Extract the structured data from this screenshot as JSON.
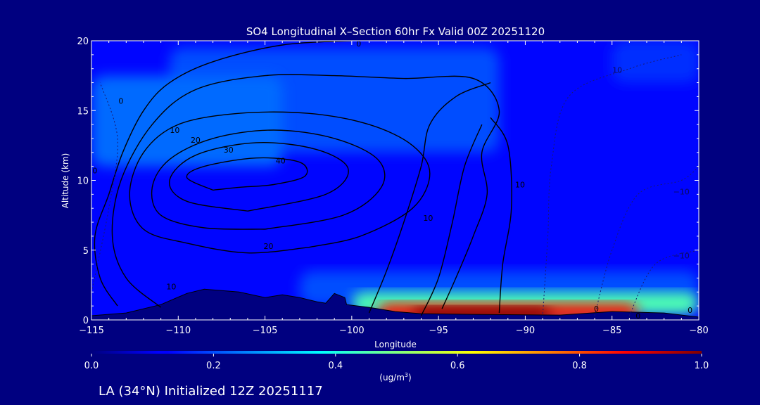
{
  "chart_data": {
    "type": "heatmap",
    "title": "SO4 Longitudinal X–Section 60hr  Fx Valid 00Z 20251120",
    "xlabel": "Longitude",
    "ylabel": "Altitude (km)",
    "xlim": [
      -115,
      -80
    ],
    "ylim": [
      0,
      20
    ],
    "x_ticks": [
      -115,
      -110,
      -105,
      -100,
      -95,
      -90,
      -85,
      -80
    ],
    "x_tick_labels": [
      "−115",
      "−110",
      "−105",
      "−100",
      "−95",
      "−90",
      "−85",
      "−80"
    ],
    "y_ticks": [
      0,
      5,
      10,
      15,
      20
    ],
    "y_tick_labels": [
      "0",
      "5",
      "10",
      "15",
      "20"
    ],
    "colorbar": {
      "label_text": "(ug/m",
      "label_sup": "3",
      "label_end": ")",
      "range": [
        0.0,
        1.0
      ],
      "ticks": [
        0.0,
        0.2,
        0.4,
        0.6,
        0.8,
        1.0
      ],
      "tick_labels": [
        "0.0",
        "0.2",
        "0.4",
        "0.6",
        "0.8",
        "1.0"
      ],
      "colormap": "jet"
    },
    "field_regions": [
      {
        "lon": [
          -115,
          -80
        ],
        "alt": [
          0,
          20
        ],
        "value": 0.13
      },
      {
        "lon": [
          -110.5,
          -91.5
        ],
        "alt": [
          12,
          19.5
        ],
        "value": 0.2
      },
      {
        "lon": [
          -115,
          -104
        ],
        "alt": [
          11,
          17.5
        ],
        "value": 0.23
      },
      {
        "lon": [
          -85,
          -80
        ],
        "alt": [
          17,
          20
        ],
        "value": 0.17
      },
      {
        "lon": [
          -103,
          -80
        ],
        "alt": [
          1,
          3.5
        ],
        "value": 0.2
      },
      {
        "lon": [
          -100,
          -80
        ],
        "alt": [
          0.4,
          2
        ],
        "value": 0.45
      },
      {
        "lon": [
          -98.5,
          -83.5
        ],
        "alt": [
          0,
          1.2
        ],
        "value": 0.85
      },
      {
        "lon": [
          -96.5,
          -88.5
        ],
        "alt": [
          0,
          0.9
        ],
        "value": 1.0
      }
    ],
    "solid_contours": [
      {
        "level": 0,
        "label": "0",
        "points": [
          [
            -113.5,
            1
          ],
          [
            -114.5,
            3
          ],
          [
            -114.8,
            6
          ],
          [
            -114,
            9
          ],
          [
            -113.2,
            12
          ],
          [
            -112,
            15
          ],
          [
            -110.5,
            17
          ],
          [
            -108,
            18.5
          ],
          [
            -104,
            19.7
          ],
          [
            -100,
            20
          ]
        ]
      },
      {
        "level": 10,
        "label": "10",
        "points": [
          [
            -111,
            0.9
          ],
          [
            -113,
            3
          ],
          [
            -113.8,
            6
          ],
          [
            -113.3,
            10
          ],
          [
            -111.5,
            14
          ],
          [
            -109,
            16.5
          ],
          [
            -105,
            17.5
          ],
          [
            -101,
            17.5
          ],
          [
            -97,
            17.3
          ],
          [
            -93,
            17.3
          ],
          [
            -91.5,
            15
          ],
          [
            -92.5,
            12
          ],
          [
            -92.2,
            9
          ],
          [
            -93,
            6
          ],
          [
            -94,
            3
          ],
          [
            -94.8,
            0.8
          ]
        ]
      },
      {
        "level": 10,
        "label": "10",
        "points": [
          [
            -99,
            0.5
          ],
          [
            -98,
            3.5
          ],
          [
            -97,
            7
          ],
          [
            -96,
            11
          ],
          [
            -95.5,
            14
          ],
          [
            -94,
            16
          ],
          [
            -92,
            17
          ]
        ]
      },
      {
        "level": 10,
        "label": "10",
        "points": [
          [
            -96,
            0.3
          ],
          [
            -95,
            3
          ],
          [
            -94.2,
            7
          ],
          [
            -93.5,
            11
          ],
          [
            -92.5,
            14
          ]
        ]
      },
      {
        "level": 10,
        "label": "10",
        "points": [
          [
            -91.5,
            0.5
          ],
          [
            -91.3,
            4
          ],
          [
            -90.8,
            8
          ],
          [
            -91,
            12.5
          ],
          [
            -92,
            14.5
          ]
        ]
      },
      {
        "level": 20,
        "label": "20",
        "points": [
          [
            -102.5,
            5.2
          ],
          [
            -106,
            4.8
          ],
          [
            -109.5,
            5.5
          ],
          [
            -112,
            6.5
          ],
          [
            -112.8,
            9
          ],
          [
            -112,
            12
          ],
          [
            -110,
            14
          ],
          [
            -106.5,
            14.8
          ],
          [
            -102.5,
            14.8
          ],
          [
            -99,
            14
          ],
          [
            -96.5,
            12.5
          ],
          [
            -95.5,
            10.5
          ],
          [
            -96.5,
            8
          ],
          [
            -99.5,
            6
          ],
          [
            -102.5,
            5.2
          ]
        ]
      },
      {
        "level": 30,
        "label": "30",
        "points": [
          [
            -105,
            6.5
          ],
          [
            -108.5,
            6.6
          ],
          [
            -111,
            7.5
          ],
          [
            -111.5,
            9.5
          ],
          [
            -110.5,
            11.5
          ],
          [
            -108,
            13
          ],
          [
            -104.5,
            13.6
          ],
          [
            -101,
            13
          ],
          [
            -98.5,
            11.5
          ],
          [
            -98.3,
            9.5
          ],
          [
            -100.5,
            7.5
          ],
          [
            -105,
            6.5
          ]
        ]
      },
      {
        "level": 40,
        "label": "40",
        "points": [
          [
            -106,
            7.8
          ],
          [
            -109.5,
            8.5
          ],
          [
            -110.5,
            10
          ],
          [
            -109,
            11.8
          ],
          [
            -105.5,
            12.7
          ],
          [
            -102,
            12.2
          ],
          [
            -100.2,
            10.8
          ],
          [
            -101.5,
            9
          ],
          [
            -106,
            7.8
          ]
        ]
      },
      {
        "level": 40,
        "label": "40",
        "points": [
          [
            -108,
            9.3
          ],
          [
            -109.5,
            10.2
          ],
          [
            -108.5,
            11
          ],
          [
            -105.5,
            11.6
          ],
          [
            -103,
            11.3
          ],
          [
            -102.7,
            10.3
          ],
          [
            -104.5,
            9.7
          ],
          [
            -106.5,
            9.5
          ],
          [
            -108,
            9.3
          ]
        ]
      }
    ],
    "dashed_contours": [
      {
        "level": -10,
        "label": "-10",
        "points": [
          [
            -115,
            2
          ],
          [
            -114,
            8
          ],
          [
            -113.5,
            13
          ],
          [
            -114.5,
            17
          ]
        ]
      },
      {
        "level": -10,
        "label": "-10",
        "points": [
          [
            -89,
            0.2
          ],
          [
            -88.7,
            6
          ],
          [
            -88.5,
            11
          ],
          [
            -87.5,
            16
          ],
          [
            -84,
            18
          ],
          [
            -81,
            19
          ]
        ]
      },
      {
        "level": -10,
        "label": "-10",
        "points": [
          [
            -86,
            0.3
          ],
          [
            -85,
            5
          ],
          [
            -83.5,
            9
          ],
          [
            -81,
            10
          ],
          [
            -80,
            11
          ]
        ]
      },
      {
        "level": -10,
        "label": "-10",
        "points": [
          [
            -84,
            0.3
          ],
          [
            -82.5,
            4
          ],
          [
            -80,
            5
          ]
        ]
      }
    ],
    "annotations": [
      {
        "text": "0",
        "lon": -113.3,
        "alt": 15.5,
        "color": "black"
      },
      {
        "text": "0",
        "lon": -114.8,
        "alt": 10.5,
        "color": "black"
      },
      {
        "text": "10",
        "lon": -110.2,
        "alt": 13.4,
        "color": "black"
      },
      {
        "text": "10",
        "lon": -110.4,
        "alt": 2.2,
        "color": "black"
      },
      {
        "text": "20",
        "lon": -109,
        "alt": 12.7,
        "color": "black"
      },
      {
        "text": "20",
        "lon": -104.8,
        "alt": 5.1,
        "color": "black"
      },
      {
        "text": "30",
        "lon": -107.1,
        "alt": 12,
        "color": "black"
      },
      {
        "text": "40",
        "lon": -104.1,
        "alt": 11.2,
        "color": "black"
      },
      {
        "text": "10",
        "lon": -95.6,
        "alt": 7.1,
        "color": "black"
      },
      {
        "text": "10",
        "lon": -90.3,
        "alt": 9.5,
        "color": "black"
      },
      {
        "text": "0",
        "lon": -99.6,
        "alt": 19.6,
        "color": "black"
      },
      {
        "text": "10",
        "lon": -84.7,
        "alt": 17.7,
        "color": "dark"
      },
      {
        "text": "−10",
        "lon": -81,
        "alt": 9,
        "color": "dark"
      },
      {
        "text": "−10",
        "lon": -81,
        "alt": 4.4,
        "color": "dark"
      },
      {
        "text": "0",
        "lon": -85.9,
        "alt": 0.6,
        "color": "black"
      },
      {
        "text": "0",
        "lon": -83.5,
        "alt": 0.1,
        "color": "black"
      },
      {
        "text": "0",
        "lon": -80.5,
        "alt": 0.5,
        "color": "black"
      }
    ],
    "terrain_km": [
      [
        -115,
        0.3
      ],
      [
        -113,
        0.5
      ],
      [
        -111,
        1.1
      ],
      [
        -109.5,
        1.9
      ],
      [
        -108.5,
        2.2
      ],
      [
        -106.5,
        2
      ],
      [
        -105,
        1.6
      ],
      [
        -104,
        1.8
      ],
      [
        -103,
        1.6
      ],
      [
        -102,
        1.3
      ],
      [
        -101.5,
        1.2
      ],
      [
        -101,
        1.9
      ],
      [
        -100.4,
        1.6
      ],
      [
        -100.3,
        1.1
      ],
      [
        -99,
        0.9
      ],
      [
        -97.5,
        0.6
      ],
      [
        -96,
        0.45
      ],
      [
        -93,
        0.4
      ],
      [
        -88,
        0.35
      ],
      [
        -85,
        0.6
      ],
      [
        -82,
        0.5
      ],
      [
        -80,
        0.2
      ]
    ]
  },
  "footer": {
    "prefix": "LA (34",
    "degree": "°",
    "suffix": "N) Initialized 12Z 20251117"
  }
}
